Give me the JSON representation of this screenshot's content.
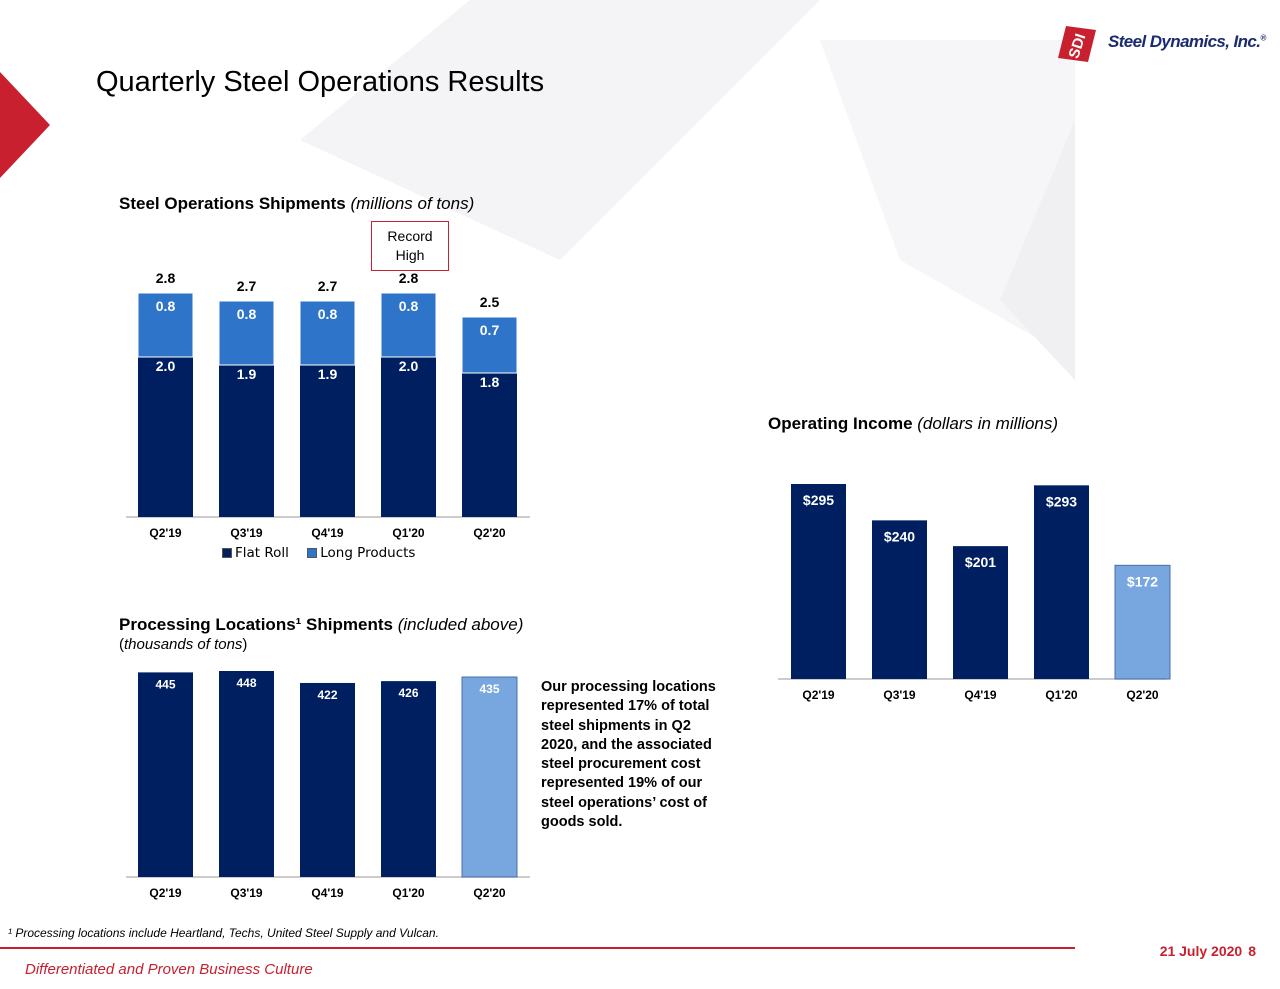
{
  "title": "Quarterly Steel Operations Results",
  "logo": {
    "brand": "SDI",
    "text": "Steel Dynamics, Inc.",
    "registered": "®"
  },
  "colors": {
    "navy": "#001f60",
    "blue": "#2e74c9",
    "light_blue": "#78a6de",
    "red": "#c8202e",
    "light_bar_border": "#4a6fa8"
  },
  "shipments": {
    "heading_bold": "Steel Operations Shipments",
    "heading_italic": "(millions of tons)",
    "badge_line1": "Record",
    "badge_line2": "High",
    "legend": {
      "flat_roll": "Flat Roll",
      "long_products": "Long Products"
    }
  },
  "processing": {
    "heading_bold": "Processing Locations¹ Shipments",
    "heading_italic": "(included above)",
    "heading_sub_open": "(",
    "heading_sub_italic": "thousands of tons",
    "heading_sub_close": ")"
  },
  "income": {
    "heading_bold": "Operating Income",
    "heading_italic": "(dollars in millions)"
  },
  "note": "Our processing locations represented 17% of total steel shipments in Q2 2020, and the associated steel procurement cost represented 19% of our steel operations’ cost of goods sold.",
  "footnote": "¹ Processing locations include Heartland, Techs, United Steel Supply and Vulcan.",
  "footer": {
    "tagline": "Differentiated and Proven Business Culture",
    "date": "21 July 2020",
    "page": "8"
  },
  "chart_data": [
    {
      "type": "bar",
      "stacked": true,
      "title": "Steel Operations Shipments (millions of tons)",
      "categories": [
        "Q2'19",
        "Q3'19",
        "Q4'19",
        "Q1'20",
        "Q2'20"
      ],
      "series": [
        {
          "name": "Flat Roll",
          "values": [
            2.0,
            1.9,
            1.9,
            2.0,
            1.8
          ],
          "labels": [
            "2.0",
            "1.9",
            "1.9",
            "2.0",
            "1.8"
          ]
        },
        {
          "name": "Long Products",
          "values": [
            0.8,
            0.8,
            0.8,
            0.8,
            0.7
          ],
          "labels": [
            "0.8",
            "0.8",
            "0.8",
            "0.8",
            "0.7"
          ]
        }
      ],
      "totals": [
        2.8,
        2.7,
        2.7,
        2.8,
        2.5
      ],
      "total_labels": [
        "2.8",
        "2.7",
        "2.7",
        "2.8",
        "2.5"
      ],
      "legend": "bottom"
    },
    {
      "type": "bar",
      "title": "Processing Locations¹ Shipments (included above) (thousands of tons)",
      "categories": [
        "Q2'19",
        "Q3'19",
        "Q4'19",
        "Q1'20",
        "Q2'20"
      ],
      "values": [
        445,
        448,
        422,
        426,
        435
      ],
      "labels": [
        "445",
        "448",
        "422",
        "426",
        "435"
      ],
      "highlight_last": true
    },
    {
      "type": "bar",
      "title": "Operating Income (dollars in millions)",
      "categories": [
        "Q2'19",
        "Q3'19",
        "Q4'19",
        "Q1'20",
        "Q2'20"
      ],
      "values": [
        295,
        240,
        201,
        293,
        172
      ],
      "labels": [
        "$295",
        "$240",
        "$201",
        "$293",
        "$172"
      ],
      "highlight_last": true
    }
  ]
}
